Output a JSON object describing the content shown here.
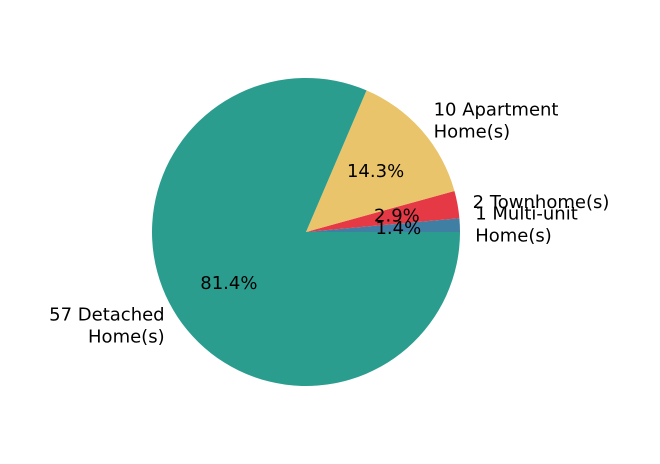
{
  "chart_data": {
    "type": "pie",
    "title": "",
    "slices": [
      {
        "label_lines": [
          "1 Multi-unit",
          "Home(s)"
        ],
        "value": 1,
        "percent_label": "1.4%",
        "color": "#3f7fa3"
      },
      {
        "label_lines": [
          "2 Townhome(s)"
        ],
        "value": 2,
        "percent_label": "2.9%",
        "color": "#e63946"
      },
      {
        "label_lines": [
          "10 Apartment",
          "Home(s)"
        ],
        "value": 10,
        "percent_label": "14.3%",
        "color": "#e9c46a"
      },
      {
        "label_lines": [
          "57 Detached",
          "Home(s)"
        ],
        "value": 57,
        "percent_label": "81.4%",
        "color": "#2a9d8f"
      }
    ],
    "start_angle_deg": 0,
    "direction": "counterclockwise_from_3_oclock",
    "legend": "none"
  }
}
